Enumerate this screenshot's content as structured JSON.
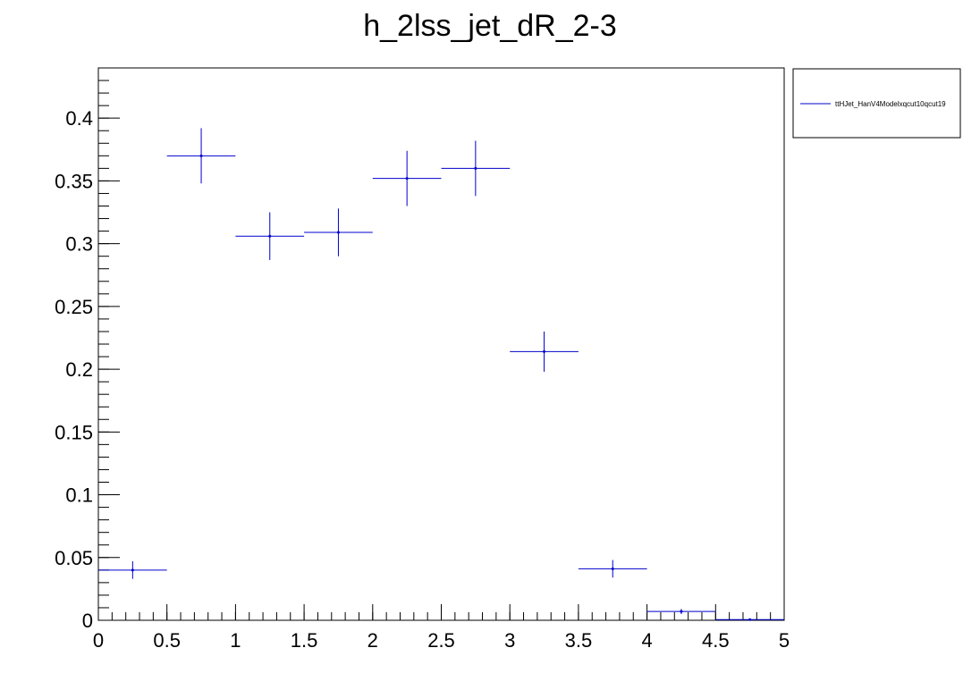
{
  "chart_data": {
    "type": "scatter",
    "title": "h_2lss_jet_dR_2-3",
    "xlabel": "",
    "ylabel": "",
    "xlim": [
      0,
      5
    ],
    "ylim": [
      0,
      0.44
    ],
    "x_tick_labels": [
      "0",
      "0.5",
      "1",
      "1.5",
      "2",
      "2.5",
      "3",
      "3.5",
      "4",
      "4.5",
      "5"
    ],
    "y_tick_labels": [
      "0",
      "0.05",
      "0.1",
      "0.15",
      "0.2",
      "0.25",
      "0.3",
      "0.35",
      "0.4"
    ],
    "legend": {
      "position": "top-right",
      "entries": [
        "ttHJet_HanV4Modelxqcut10qcut19"
      ]
    },
    "series": [
      {
        "name": "ttHJet_HanV4Modelxqcut10qcut19",
        "color": "#0000cc",
        "bin_width": 0.5,
        "x": [
          0.25,
          0.75,
          1.25,
          1.75,
          2.25,
          2.75,
          3.25,
          3.75,
          4.25,
          4.75
        ],
        "y": [
          0.04,
          0.37,
          0.306,
          0.309,
          0.352,
          0.36,
          0.214,
          0.041,
          0.007,
          0.0005
        ],
        "yerr": [
          0.007,
          0.022,
          0.019,
          0.019,
          0.022,
          0.022,
          0.016,
          0.007,
          0.002,
          0.0005
        ]
      }
    ],
    "grid": false
  }
}
